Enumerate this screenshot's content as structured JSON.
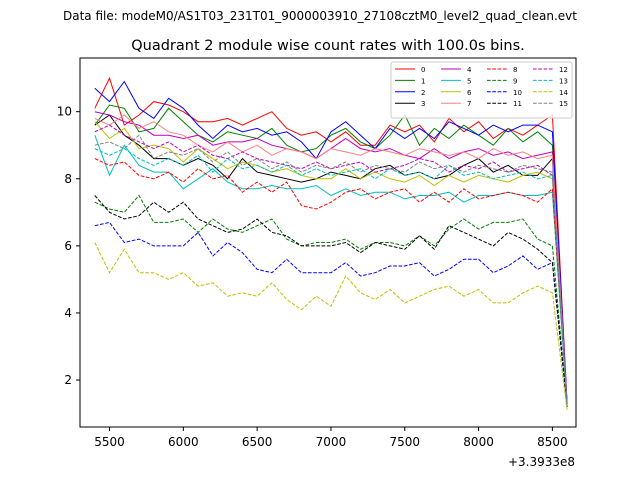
{
  "suptitle": "Data file: modeM0/AS1T03_231T01_9000003910_27108cztM0_level2_quad_clean.evt",
  "chart_data": {
    "type": "line",
    "title": "Quadrant 2 module wise count rates with 100.0s bins.",
    "xlabel": "",
    "ylabel": "",
    "x_offset_label": "+3.3933e8",
    "xlim": [
      5300,
      8660
    ],
    "ylim": [
      0.6,
      11.6
    ],
    "xticks": [
      5500,
      6000,
      6500,
      7000,
      7500,
      8000,
      8500
    ],
    "yticks": [
      2,
      4,
      6,
      8,
      10
    ],
    "grid": false,
    "legend_position": "top-right",
    "x": [
      5400,
      5500,
      5600,
      5700,
      5800,
      5900,
      6000,
      6100,
      6200,
      6300,
      6400,
      6500,
      6600,
      6700,
      6800,
      6900,
      7000,
      7100,
      7200,
      7300,
      7400,
      7500,
      7600,
      7700,
      7800,
      7900,
      8000,
      8100,
      8200,
      8300,
      8400,
      8500,
      8600
    ],
    "series": [
      {
        "name": "0",
        "color": "#ff0000",
        "dash": "solid",
        "values": [
          10.1,
          11.0,
          9.6,
          9.9,
          10.3,
          10.2,
          10.0,
          9.7,
          9.7,
          9.8,
          9.6,
          9.8,
          10.0,
          9.5,
          9.3,
          9.4,
          9.1,
          9.4,
          9.0,
          9.0,
          9.6,
          9.4,
          9.6,
          9.1,
          9.8,
          9.4,
          9.7,
          9.2,
          9.5,
          9.3,
          9.6,
          9.9,
          1.3
        ]
      },
      {
        "name": "1",
        "color": "#008000",
        "dash": "solid",
        "values": [
          9.6,
          10.2,
          10.1,
          9.4,
          9.5,
          10.1,
          9.7,
          9.3,
          9.1,
          9.4,
          9.3,
          9.2,
          9.5,
          9.0,
          8.8,
          8.9,
          9.3,
          9.5,
          9.1,
          8.9,
          9.3,
          9.9,
          9.0,
          9.5,
          9.2,
          9.6,
          9.3,
          9.0,
          9.5,
          9.1,
          9.4,
          9.0,
          1.2
        ]
      },
      {
        "name": "2",
        "color": "#0000ff",
        "dash": "solid",
        "values": [
          10.7,
          10.3,
          10.9,
          10.1,
          9.8,
          10.4,
          10.1,
          9.6,
          9.2,
          9.6,
          9.4,
          9.5,
          9.3,
          9.4,
          9.1,
          8.6,
          9.4,
          9.7,
          9.3,
          8.9,
          9.5,
          9.2,
          9.5,
          9.2,
          9.7,
          9.5,
          9.3,
          9.6,
          9.4,
          9.6,
          9.6,
          9.4,
          1.3
        ]
      },
      {
        "name": "3",
        "color": "#000000",
        "dash": "solid",
        "values": [
          9.6,
          9.9,
          9.3,
          9.0,
          8.6,
          8.6,
          8.4,
          8.6,
          8.4,
          8.0,
          8.6,
          8.2,
          8.1,
          8.0,
          7.9,
          8.0,
          8.2,
          8.1,
          8.0,
          8.3,
          8.4,
          8.1,
          8.2,
          8.0,
          8.1,
          8.4,
          8.6,
          8.2,
          8.4,
          8.1,
          8.1,
          8.6,
          1.2
        ]
      },
      {
        "name": "4",
        "color": "#bf00bf",
        "dash": "solid",
        "values": [
          10.0,
          9.9,
          9.7,
          9.6,
          9.3,
          9.3,
          9.2,
          9.3,
          9.0,
          9.1,
          9.1,
          9.2,
          9.0,
          8.9,
          8.8,
          8.6,
          8.9,
          9.2,
          8.9,
          8.8,
          8.9,
          8.7,
          8.6,
          8.9,
          8.6,
          8.8,
          8.9,
          8.7,
          8.8,
          8.6,
          8.7,
          8.8,
          1.2
        ]
      },
      {
        "name": "5",
        "color": "#00bfbf",
        "dash": "solid",
        "values": [
          9.3,
          8.1,
          9.0,
          8.4,
          8.2,
          8.2,
          7.7,
          8.0,
          8.3,
          7.9,
          7.7,
          7.7,
          7.8,
          7.7,
          7.7,
          7.8,
          7.5,
          7.7,
          7.5,
          7.6,
          7.6,
          7.4,
          7.5,
          7.5,
          7.6,
          7.3,
          7.5,
          7.5,
          7.6,
          7.5,
          7.5,
          7.6,
          1.2
        ]
      },
      {
        "name": "6",
        "color": "#bfbf00",
        "dash": "solid",
        "values": [
          9.7,
          9.2,
          9.5,
          8.9,
          9.0,
          8.9,
          8.5,
          8.9,
          8.6,
          8.3,
          8.5,
          8.4,
          8.2,
          8.3,
          8.1,
          8.0,
          8.0,
          8.3,
          8.0,
          8.2,
          8.0,
          7.9,
          8.1,
          7.8,
          8.1,
          7.9,
          8.1,
          8.0,
          7.9,
          8.1,
          8.2,
          8.0,
          1.2
        ]
      },
      {
        "name": "7",
        "color": "#ff8080",
        "dash": "solid",
        "values": [
          9.8,
          9.6,
          9.9,
          9.5,
          9.7,
          9.4,
          9.3,
          9.0,
          8.8,
          9.1,
          8.8,
          9.0,
          8.7,
          8.9,
          8.8,
          8.6,
          8.9,
          8.8,
          8.7,
          8.9,
          8.8,
          8.7,
          8.9,
          8.8,
          8.7,
          8.8,
          8.6,
          8.9,
          8.7,
          8.8,
          8.6,
          8.7,
          1.2
        ]
      },
      {
        "name": "8",
        "color": "#ff0000",
        "dash": "dashed",
        "values": [
          8.6,
          8.4,
          8.5,
          8.1,
          8.0,
          8.2,
          7.9,
          8.3,
          8.0,
          8.1,
          7.6,
          7.9,
          7.6,
          7.9,
          7.2,
          7.1,
          7.3,
          7.6,
          7.7,
          7.4,
          7.6,
          7.7,
          7.3,
          7.6,
          7.3,
          7.7,
          7.4,
          7.5,
          7.6,
          7.5,
          7.3,
          7.7,
          1.3
        ]
      },
      {
        "name": "9",
        "color": "#008000",
        "dash": "dashed",
        "values": [
          7.3,
          7.1,
          7.0,
          7.5,
          6.7,
          6.7,
          6.8,
          6.4,
          6.8,
          6.5,
          6.4,
          6.6,
          6.8,
          6.2,
          6.0,
          6.1,
          6.1,
          6.2,
          5.9,
          6.1,
          6.1,
          6.0,
          6.3,
          6.0,
          6.5,
          6.8,
          6.5,
          6.7,
          6.7,
          6.8,
          6.2,
          6.0,
          1.2
        ]
      },
      {
        "name": "10",
        "color": "#0000ff",
        "dash": "dashed",
        "values": [
          6.6,
          6.7,
          6.1,
          6.2,
          6.0,
          6.0,
          6.0,
          6.4,
          5.7,
          6.1,
          5.8,
          5.3,
          5.2,
          5.6,
          5.2,
          5.2,
          5.2,
          5.5,
          5.1,
          5.2,
          5.4,
          5.4,
          5.5,
          5.1,
          5.3,
          5.6,
          5.6,
          5.2,
          5.4,
          5.7,
          5.3,
          5.5,
          1.2
        ]
      },
      {
        "name": "11",
        "color": "#000000",
        "dash": "dashed",
        "values": [
          7.5,
          7.0,
          6.8,
          6.9,
          7.3,
          7.0,
          7.3,
          6.8,
          6.6,
          6.4,
          6.5,
          6.8,
          6.4,
          6.3,
          6.0,
          6.0,
          6.0,
          6.1,
          5.8,
          6.1,
          6.0,
          5.9,
          6.3,
          5.9,
          6.6,
          6.4,
          6.2,
          6.0,
          6.4,
          6.2,
          5.9,
          5.5,
          1.2
        ]
      },
      {
        "name": "12",
        "color": "#bf00bf",
        "dash": "dashed",
        "values": [
          9.4,
          9.6,
          9.3,
          9.1,
          8.9,
          9.1,
          8.8,
          9.0,
          8.7,
          8.6,
          8.8,
          8.6,
          8.5,
          8.4,
          8.3,
          8.5,
          8.3,
          8.4,
          8.5,
          8.2,
          8.3,
          8.4,
          8.6,
          8.5,
          8.2,
          8.4,
          8.3,
          8.5,
          8.2,
          8.3,
          8.4,
          8.1,
          1.2
        ]
      },
      {
        "name": "13",
        "color": "#00bfbf",
        "dash": "dashed",
        "values": [
          8.9,
          8.7,
          8.9,
          8.6,
          8.4,
          8.6,
          8.4,
          8.7,
          8.2,
          8.6,
          8.3,
          8.4,
          8.2,
          8.4,
          8.1,
          8.3,
          8.1,
          8.2,
          8.3,
          8.0,
          8.3,
          8.1,
          8.2,
          8.0,
          8.4,
          8.1,
          8.2,
          8.0,
          8.1,
          8.2,
          8.0,
          8.1,
          1.2
        ]
      },
      {
        "name": "14",
        "color": "#bfbf00",
        "dash": "dashed",
        "values": [
          6.1,
          5.2,
          5.9,
          5.2,
          5.2,
          5.0,
          5.2,
          4.8,
          4.9,
          4.5,
          4.6,
          4.5,
          4.9,
          4.4,
          4.1,
          4.5,
          4.2,
          5.1,
          4.6,
          4.4,
          4.7,
          4.3,
          4.5,
          4.7,
          4.8,
          4.5,
          4.7,
          4.3,
          4.3,
          4.6,
          4.8,
          4.6,
          1.1
        ]
      },
      {
        "name": "15",
        "color": "#808080",
        "dash": "dashed",
        "values": [
          9.0,
          9.1,
          8.9,
          9.3,
          8.6,
          8.8,
          8.7,
          8.9,
          8.5,
          8.8,
          8.4,
          8.6,
          8.3,
          8.5,
          8.2,
          8.4,
          8.3,
          8.5,
          8.2,
          8.4,
          8.3,
          8.2,
          8.5,
          8.3,
          8.4,
          8.2,
          8.4,
          8.3,
          8.2,
          8.4,
          8.3,
          8.2,
          1.2
        ]
      }
    ]
  }
}
